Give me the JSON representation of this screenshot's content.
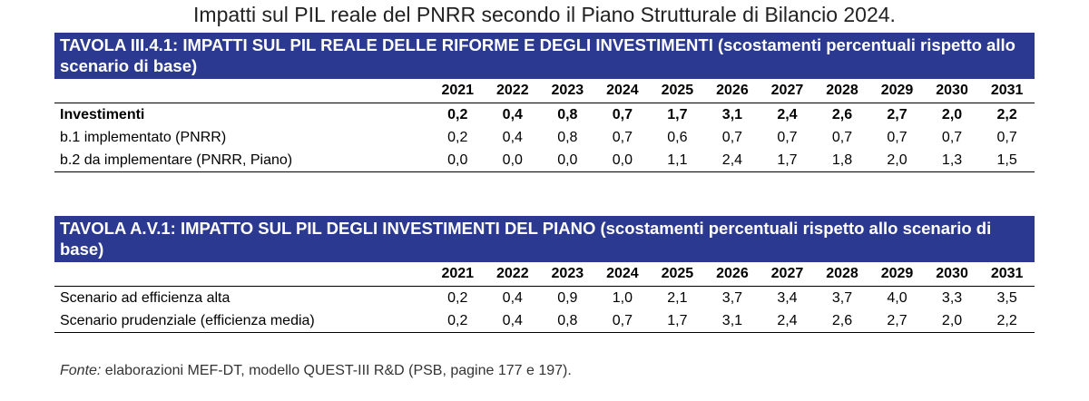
{
  "title": "Impatti sul PIL reale del PNRR secondo il Piano Strutturale di Bilancio 2024.",
  "years": [
    "2021",
    "2022",
    "2023",
    "2024",
    "2025",
    "2026",
    "2027",
    "2028",
    "2029",
    "2030",
    "2031"
  ],
  "table1": {
    "header": "TAVOLA III.4.1: IMPATTI SUL PIL REALE DELLE RIFORME E DEGLI INVESTIMENTI (scostamenti percentuali rispetto allo scenario di base)",
    "rows": [
      {
        "label": "Investimenti",
        "values": [
          "0,2",
          "0,4",
          "0,8",
          "0,7",
          "1,7",
          "3,1",
          "2,4",
          "2,6",
          "2,7",
          "2,0",
          "2,2"
        ]
      },
      {
        "label": "b.1 implementato (PNRR)",
        "values": [
          "0,2",
          "0,4",
          "0,8",
          "0,7",
          "0,6",
          "0,7",
          "0,7",
          "0,7",
          "0,7",
          "0,7",
          "0,7"
        ]
      },
      {
        "label": "b.2 da implementare (PNRR, Piano)",
        "values": [
          "0,0",
          "0,0",
          "0,0",
          "0,0",
          "1,1",
          "2,4",
          "1,7",
          "1,8",
          "2,0",
          "1,3",
          "1,5"
        ]
      }
    ]
  },
  "table2": {
    "header": "TAVOLA A.V.1: IMPATTO SUL PIL DEGLI INVESTIMENTI DEL PIANO (scostamenti percentuali rispetto allo scenario di base)",
    "rows": [
      {
        "label": "Scenario ad efficienza alta",
        "values": [
          "0,2",
          "0,4",
          "0,9",
          "1,0",
          "2,1",
          "3,7",
          "3,4",
          "3,7",
          "4,0",
          "3,3",
          "3,5"
        ]
      },
      {
        "label": "Scenario prudenziale (efficienza media)",
        "values": [
          "0,2",
          "0,4",
          "0,8",
          "0,7",
          "1,7",
          "3,1",
          "2,4",
          "2,6",
          "2,7",
          "2,0",
          "2,2"
        ]
      }
    ]
  },
  "source": {
    "label": "Fonte:",
    "text": " elaborazioni MEF-DT, modello QUEST-III R&D (PSB, pagine 177 e 197)."
  },
  "colors": {
    "header_bg": "#2b3990",
    "header_text": "#ffffff"
  }
}
